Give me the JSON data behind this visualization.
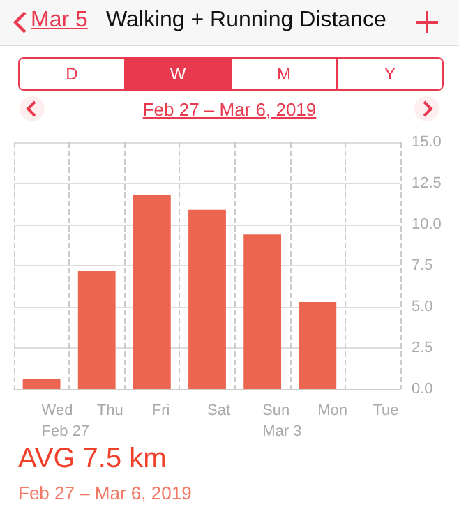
{
  "chart_data": {
    "type": "bar",
    "title": "Walking + Running Distance",
    "subtitle": "Feb 27 – Mar 6, 2019",
    "annotations": [
      "Mar 5",
      "D",
      "W",
      "M",
      "Y",
      "AVG 7.5 km",
      "Feb 27 – Mar 6, 2019"
    ],
    "categories": [
      "Wed\nFeb 27",
      "Thu",
      "Fri",
      "Sat",
      "Sun\nMar 3",
      "Mon",
      "Tue"
    ],
    "values": [
      0.6,
      7.2,
      11.8,
      10.9,
      9.4,
      5.3,
      null
    ],
    "color": "#eb6550",
    "ylim": [
      0,
      15
    ],
    "yticks": [
      {
        "value": 0,
        "label": "0.0"
      },
      {
        "value": 2.5,
        "label": "2.5"
      },
      {
        "value": 5,
        "label": "5.0"
      },
      {
        "value": 7.5,
        "label": "7.5"
      },
      {
        "value": 10,
        "label": "10.0"
      },
      {
        "value": 12.5,
        "label": "12.5"
      },
      {
        "value": 15,
        "label": "15.0"
      }
    ],
    "grid": true
  }
}
